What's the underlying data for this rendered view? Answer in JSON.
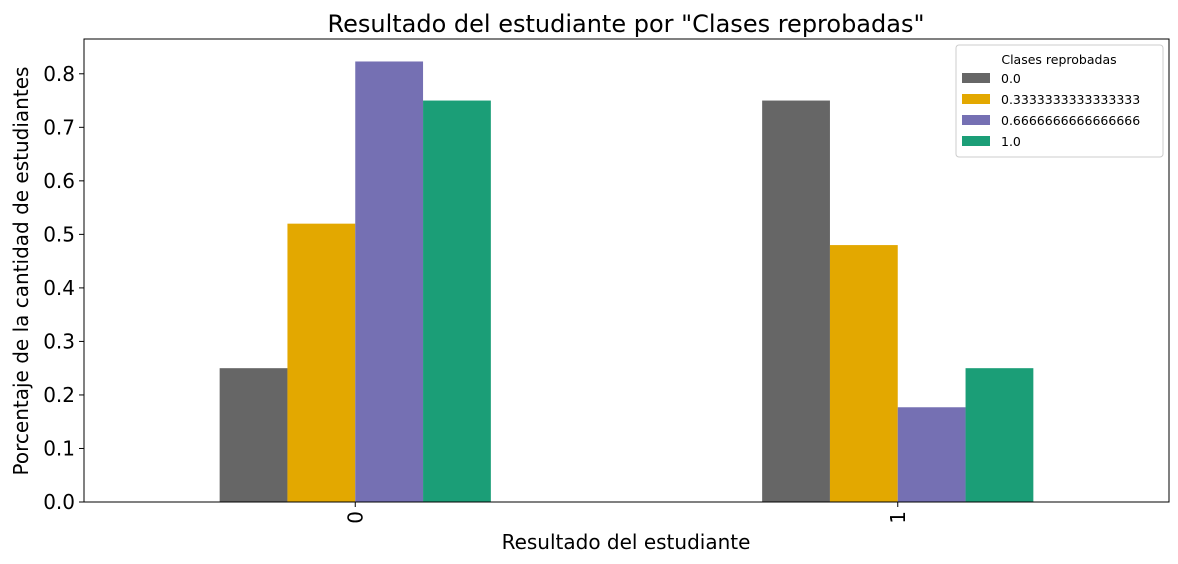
{
  "chart_data": {
    "type": "bar",
    "title": "Resultado del estudiante por \"Clases reprobadas\"",
    "xlabel": "Resultado del estudiante",
    "ylabel": "Porcentaje de la cantidad de estudiantes",
    "categories": [
      "0",
      "1"
    ],
    "ylim": [
      0,
      0.865
    ],
    "yticks": [
      "0.0",
      "0.1",
      "0.2",
      "0.3",
      "0.4",
      "0.5",
      "0.6",
      "0.7",
      "0.8"
    ],
    "grid": false,
    "legend": {
      "title": "Clases reprobadas",
      "placement": "top-right"
    },
    "series": [
      {
        "name": "0.0",
        "color": "#666666",
        "values": [
          0.25,
          0.75
        ]
      },
      {
        "name": "0.3333333333333333",
        "color": "#e3a800",
        "values": [
          0.52,
          0.48
        ]
      },
      {
        "name": "0.6666666666666666",
        "color": "#7570b3",
        "values": [
          0.823,
          0.177
        ]
      },
      {
        "name": "1.0",
        "color": "#1b9e77",
        "values": [
          0.75,
          0.25
        ]
      }
    ]
  }
}
